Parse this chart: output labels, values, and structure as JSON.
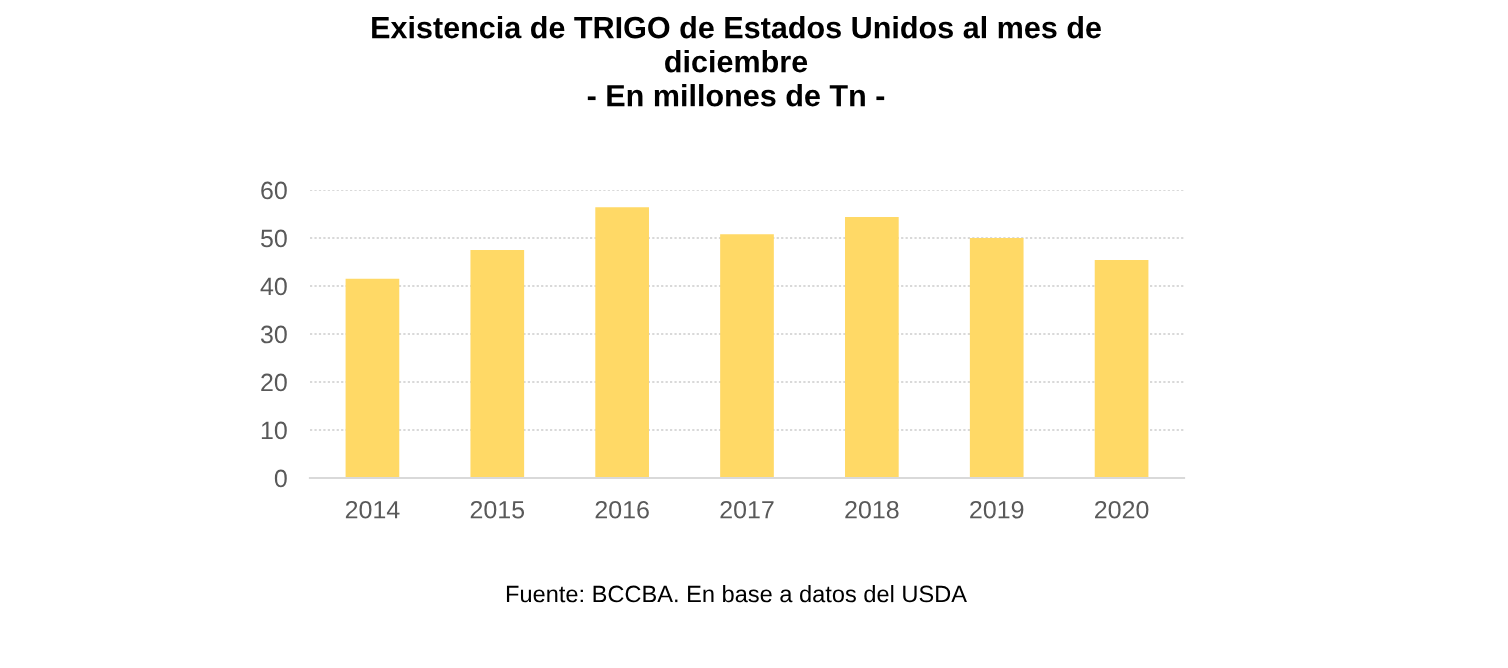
{
  "chart_data": {
    "type": "bar",
    "title": "Existencia de TRIGO de Estados Unidos al mes de\ndiciembre\n- En millones de Tn -",
    "categories": [
      "2014",
      "2015",
      "2016",
      "2017",
      "2018",
      "2019",
      "2020"
    ],
    "values": [
      41.5,
      47.5,
      56.4,
      50.8,
      54.4,
      50.0,
      45.4
    ],
    "color": "#ffd966",
    "ylim": [
      0,
      60
    ],
    "yticks": [
      0,
      10,
      20,
      30,
      40,
      50,
      60
    ],
    "grid": "y",
    "annotations": [
      "Fuente: BCCBA. En base a datos del USDA"
    ]
  }
}
